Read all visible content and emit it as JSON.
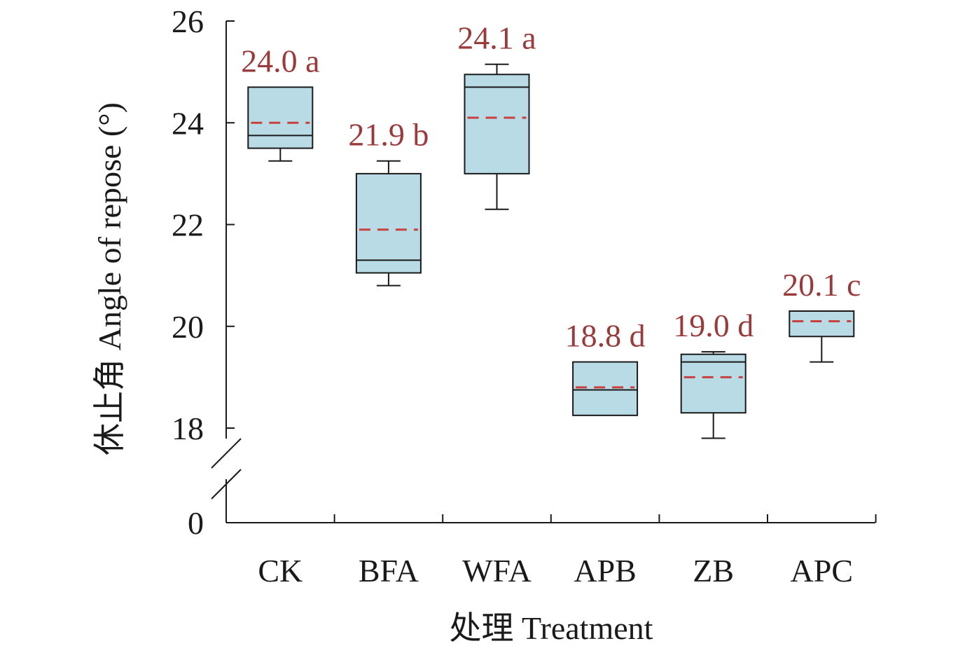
{
  "chart_data": {
    "type": "boxplot",
    "title": "",
    "xlabel": "处理 Treatment",
    "ylabel": "休止角 Angle of repose (°)",
    "ylim": [
      18,
      26
    ],
    "yticks": [
      18,
      20,
      22,
      24,
      26
    ],
    "y_break": {
      "lower_tick": 0,
      "lower_tick_label": "0"
    },
    "categories": [
      "CK",
      "BFA",
      "WFA",
      "APB",
      "ZB",
      "APC"
    ],
    "boxes": [
      {
        "category": "CK",
        "whisker_low": 23.25,
        "q1": 23.5,
        "median": 23.75,
        "q3": 24.7,
        "whisker_high": 24.7,
        "mean": 24.0,
        "label": "24.0 a"
      },
      {
        "category": "BFA",
        "whisker_low": 20.8,
        "q1": 21.05,
        "median": 21.3,
        "q3": 23.0,
        "whisker_high": 23.25,
        "mean": 21.9,
        "label": "21.9 b"
      },
      {
        "category": "WFA",
        "whisker_low": 22.3,
        "q1": 23.0,
        "median": 24.7,
        "q3": 24.95,
        "whisker_high": 25.15,
        "mean": 24.1,
        "label": "24.1 a"
      },
      {
        "category": "APB",
        "whisker_low": 18.25,
        "q1": 18.25,
        "median": 18.75,
        "q3": 19.3,
        "whisker_high": 19.3,
        "mean": 18.8,
        "label": "18.8 d"
      },
      {
        "category": "ZB",
        "whisker_low": 17.8,
        "q1": 18.3,
        "median": 19.3,
        "q3": 19.45,
        "whisker_high": 19.5,
        "mean": 19.0,
        "label": "19.0 d"
      },
      {
        "category": "APC",
        "whisker_low": 19.3,
        "q1": 19.8,
        "median": 20.3,
        "q3": 20.3,
        "whisker_high": 20.3,
        "mean": 20.1,
        "label": "20.1 c"
      }
    ],
    "colors": {
      "box_fill": "#b8dbe6",
      "box_stroke": "#1a1a1a",
      "mean_line": "#c8413f",
      "mean_label": "#9b3a3a",
      "axis": "#1a1a1a"
    }
  }
}
